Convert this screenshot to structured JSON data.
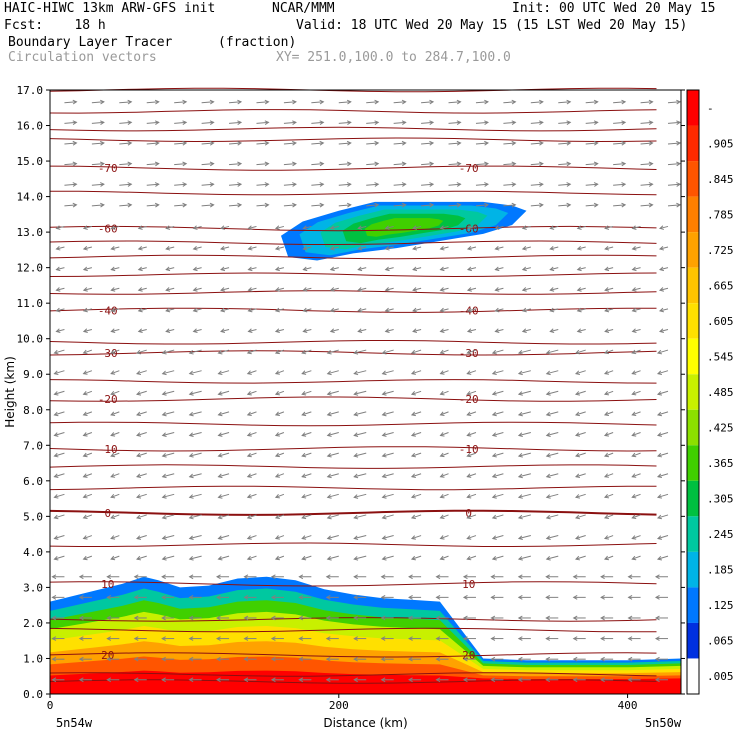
{
  "header": {
    "line1_left": "HAIC-HIWC 13km ARW-GFS init",
    "line1_mid": "NCAR/MMM",
    "line1_right": "Init: 00 UTC Wed 20 May 15",
    "line2_left": "Fcst:    18 h",
    "line2_right": "Valid: 18 UTC Wed 20 May 15 (15 LST Wed 20 May 15)",
    "field_name": "Boundary Layer Tracer",
    "field_units": "(fraction)",
    "vector_name": "Circulation vectors",
    "xsec_coords": "XY= 251.0,100.0 to 284.7,100.0"
  },
  "chart_data": {
    "type": "heatmap",
    "xlabel": "Distance (km)",
    "ylabel": "Height (km)",
    "xlim": [
      0,
      437
    ],
    "ylim": [
      0,
      17
    ],
    "x_ticks": [
      0,
      200,
      400
    ],
    "y_ticks": [
      "0.0",
      "1.0",
      "2.0",
      "3.0",
      "4.0",
      "5.0",
      "6.0",
      "7.0",
      "8.0",
      "9.0",
      "10.0",
      "11.0",
      "12.0",
      "13.0",
      "14.0",
      "15.0",
      "16.0",
      "17.0"
    ],
    "x_end_labels": {
      "left": "5n54w",
      "right": "5n50w"
    },
    "colorbar": {
      "labels": [
        "-",
        ".905",
        ".845",
        ".785",
        ".725",
        ".665",
        ".605",
        ".545",
        ".485",
        ".425",
        ".365",
        ".305",
        ".245",
        ".185",
        ".125",
        ".065",
        ".005"
      ],
      "colors": [
        "#ff0000",
        "#ff2a00",
        "#ff5500",
        "#ff7f00",
        "#ffa200",
        "#ffc400",
        "#ffe000",
        "#ffff00",
        "#c8f000",
        "#8ce000",
        "#40d000",
        "#00c040",
        "#00c8a0",
        "#00b4e6",
        "#0078ff",
        "#0030e0",
        "#ffffff"
      ]
    },
    "temperature_contours": [
      {
        "label": "20",
        "height_km": 1.1
      },
      {
        "label": "10",
        "height_km": 3.1
      },
      {
        "label": "0",
        "height_km": 5.1
      },
      {
        "label": "-10",
        "height_km": 6.9
      },
      {
        "label": "-20",
        "height_km": 8.3
      },
      {
        "label": "-30",
        "height_km": 9.6
      },
      {
        "label": "-40",
        "height_km": 10.8
      },
      {
        "label": "-60",
        "height_km": 13.1
      },
      {
        "label": "-70",
        "height_km": 14.8
      }
    ],
    "tracer_low": {
      "x_km": [
        0,
        10,
        30,
        50,
        65,
        75,
        90,
        110,
        130,
        150,
        170,
        190,
        210,
        230,
        250,
        270,
        300,
        330,
        360,
        400,
        437
      ],
      "top_km": [
        2.6,
        2.7,
        2.9,
        3.1,
        3.3,
        3.2,
        3.0,
        3.05,
        3.25,
        3.3,
        3.2,
        2.95,
        2.8,
        2.7,
        2.65,
        2.6,
        1.0,
        0.95,
        0.95,
        0.95,
        1.0
      ]
    },
    "tracer_upper": {
      "x_km": [
        160,
        175,
        200,
        225,
        250,
        275,
        300,
        320,
        330,
        320,
        300,
        270,
        240,
        210,
        185,
        165
      ],
      "height_km": [
        12.9,
        13.3,
        13.6,
        13.85,
        13.85,
        13.85,
        13.85,
        13.75,
        13.6,
        13.2,
        12.95,
        12.75,
        12.55,
        12.4,
        12.2,
        12.3
      ]
    },
    "grid": false,
    "legend": "right colorbar"
  }
}
